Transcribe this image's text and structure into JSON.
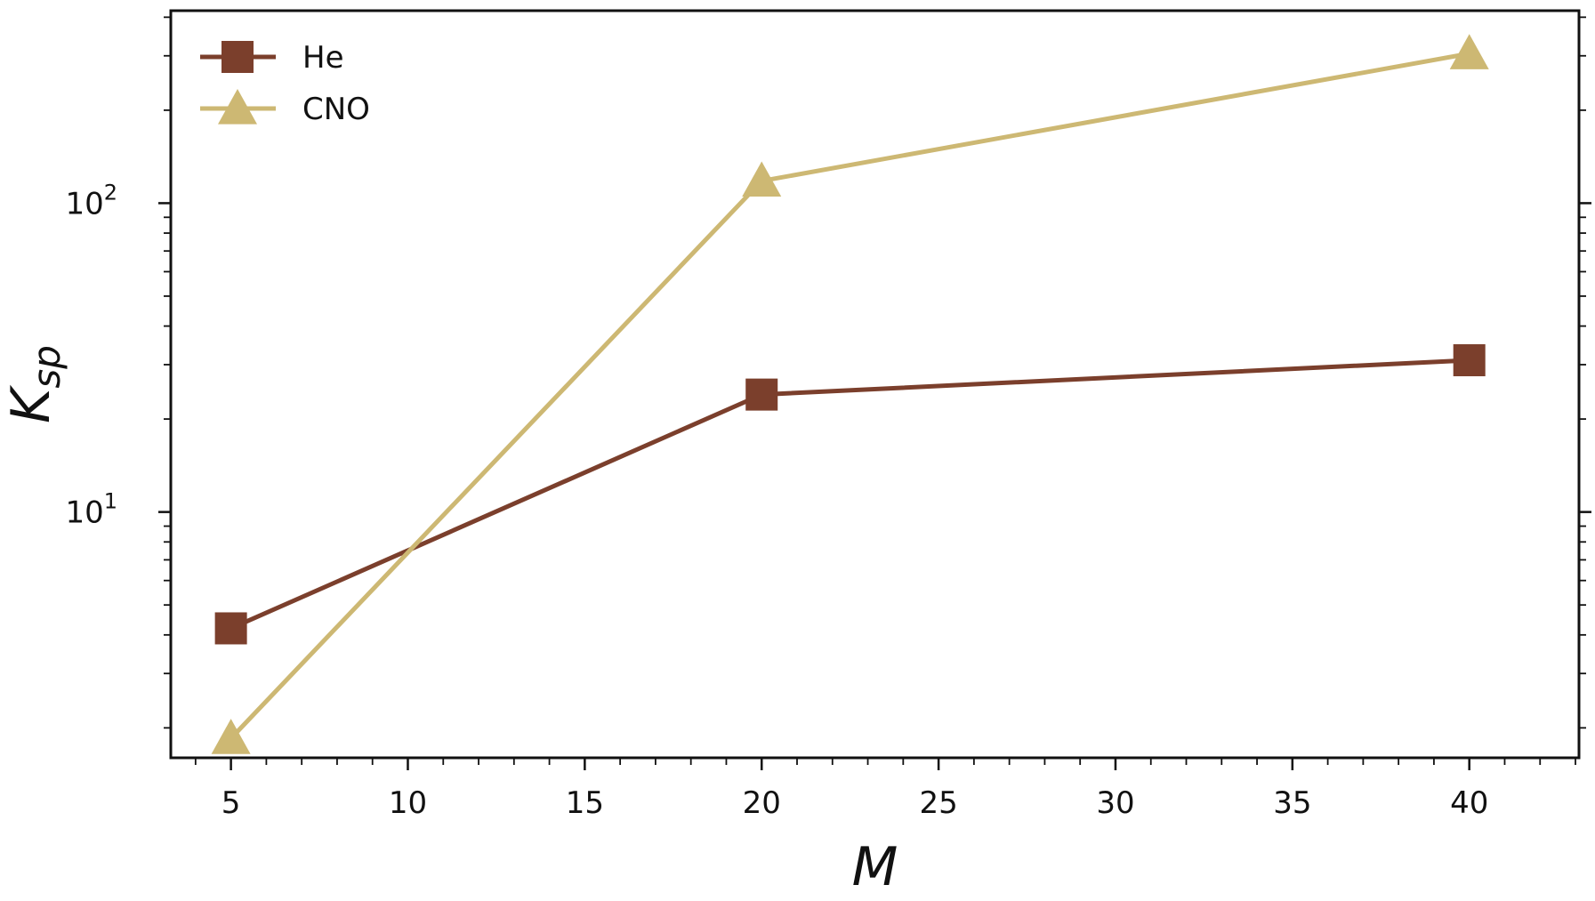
{
  "chart_data": {
    "type": "line",
    "title": "",
    "xlabel": "M",
    "ylabel": "K",
    "ylabel_subscript": "sp",
    "yscale": "log",
    "xlim": [
      3.3,
      43.1
    ],
    "ylim": [
      1.6,
      420
    ],
    "x": [
      5,
      20,
      40
    ],
    "xticks": [
      "5",
      "10",
      "15",
      "20",
      "25",
      "30",
      "35",
      "40"
    ],
    "yticks": [
      {
        "base": "10",
        "exp": "1",
        "value": 10
      },
      {
        "base": "10",
        "exp": "2",
        "value": 100
      }
    ],
    "legend_position": "top-left",
    "series": [
      {
        "name": "He",
        "marker": "square",
        "color": "#7b3f2c",
        "values": [
          4.2,
          24,
          31
        ]
      },
      {
        "name": "CNO",
        "marker": "triangle",
        "color": "#cdb873",
        "values": [
          1.85,
          118,
          305
        ]
      }
    ]
  }
}
